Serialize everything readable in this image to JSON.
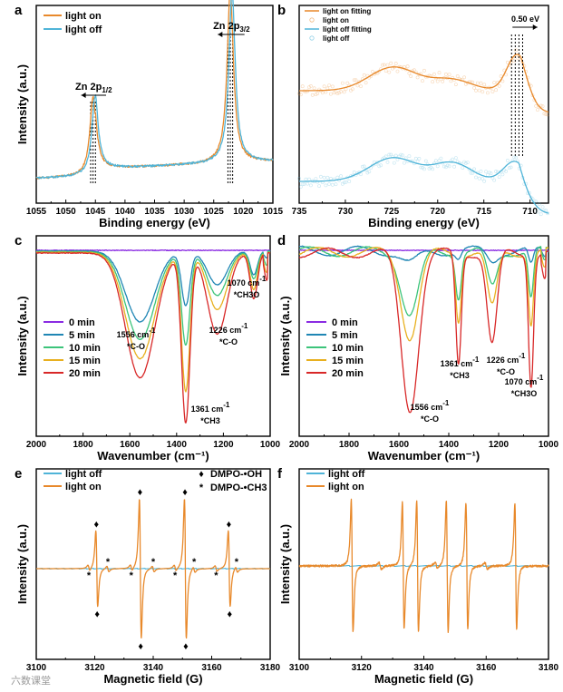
{
  "watermark": "六数课堂",
  "colors": {
    "light_on": "#e8892b",
    "light_off": "#4fb4d8",
    "min0": "#8a2be2",
    "min5": "#1f86b4",
    "min10": "#3cc47a",
    "min15": "#e8b020",
    "min20": "#d82828",
    "dmpo_oh": "#e02020",
    "guide": "#000000"
  },
  "chart_data": [
    {
      "panel": "a",
      "type": "line",
      "xlabel": "Binding energy (eV)",
      "ylabel": "Intensity (a.u.)",
      "xlim": [
        1055,
        1015
      ],
      "x_ticks": [
        "1055",
        "1050",
        "1045",
        "1040",
        "1035",
        "1030",
        "1025",
        "1020",
        "1015"
      ],
      "legend": [
        "light on",
        "light off"
      ],
      "series": [
        {
          "name": "light on",
          "color_key": "light_on",
          "peaks": [
            {
              "center": 1045.4,
              "height": 0.46,
              "width": 0.65
            },
            {
              "center": 1022.2,
              "height": 1.0,
              "width": 0.65
            }
          ],
          "baseline_low": 0.08,
          "baseline_high": 0.14
        },
        {
          "name": "light off",
          "color_key": "light_off",
          "peaks": [
            {
              "center": 1045.1,
              "height": 0.45,
              "width": 0.65
            },
            {
              "center": 1021.9,
              "height": 0.99,
              "width": 0.65
            }
          ],
          "baseline_low": 0.08,
          "baseline_high": 0.14
        }
      ],
      "guides_x": [
        1045.8,
        1045.4,
        1045.0,
        1022.6,
        1022.2,
        1021.8
      ],
      "annotations": [
        {
          "main": "Zn 2p",
          "sub": "1/2",
          "x": 1045.3,
          "arrow_from": 1043.2,
          "arrow_to": 1047.4
        },
        {
          "main": "Zn 2p",
          "sub": "3/2",
          "x": 1022.0,
          "arrow_from": 1019.8,
          "arrow_to": 1024.3
        }
      ]
    },
    {
      "panel": "b",
      "type": "scatter",
      "xlabel": "Binding energy (eV)",
      "xlim": [
        735,
        708
      ],
      "x_ticks": [
        "735",
        "730",
        "725",
        "720",
        "715",
        "710"
      ],
      "legend": [
        "light on fitting",
        "light on",
        "light off fitting",
        "light off"
      ],
      "series": [
        {
          "name": "light on fitting",
          "color_key": "light_on",
          "offset": 0.62,
          "bumps": [
            {
              "center": 724.8,
              "height": 0.13,
              "width": 2.6
            },
            {
              "center": 718.5,
              "height": 0.06,
              "width": 2.2
            },
            {
              "center": 711.4,
              "height": 0.2,
              "width": 1.1
            }
          ],
          "tail": {
            "start": 711.0,
            "drop": 0.13
          }
        },
        {
          "name": "light off fitting",
          "color_key": "light_off",
          "offset": 0.12,
          "bumps": [
            {
              "center": 724.8,
              "height": 0.13,
              "width": 2.6
            },
            {
              "center": 718.4,
              "height": 0.1,
              "width": 2.1
            },
            {
              "center": 711.7,
              "height": 0.11,
              "width": 1.2
            }
          ],
          "tail": {
            "start": 711.2,
            "drop": 0.19
          }
        }
      ],
      "guides_x": [
        712.0,
        711.6,
        711.2,
        710.8
      ],
      "annotation": {
        "label": "0.50 eV",
        "arrow_from": 711.9,
        "arrow_to": 709.2
      }
    },
    {
      "panel": "c",
      "type": "line",
      "xlabel": "Wavenumber (cm⁻¹)",
      "ylabel": "Intensity (a.u.)",
      "xlim": [
        2000,
        1000
      ],
      "x_ticks": [
        "2000",
        "1800",
        "1600",
        "1400",
        "1200",
        "1000"
      ],
      "legend": [
        "0 min",
        "5 min",
        "10 min",
        "15 min",
        "20 min"
      ],
      "series_keys": [
        "min0",
        "min5",
        "min10",
        "min15",
        "min20"
      ],
      "bands": [
        {
          "center": 1556,
          "width": 62,
          "depth": [
            0.0,
            0.42,
            0.52,
            0.63,
            0.74
          ]
        },
        {
          "center": 1361,
          "width": 18,
          "depth": [
            0.0,
            0.32,
            0.55,
            0.82,
            1.0
          ]
        },
        {
          "center": 1226,
          "width": 42,
          "depth": [
            0.0,
            0.2,
            0.26,
            0.34,
            0.48
          ]
        },
        {
          "center": 1070,
          "width": 16,
          "depth": [
            0.0,
            0.14,
            0.16,
            0.22,
            0.27
          ]
        }
      ],
      "annotations": [
        {
          "text": "1556 cm",
          "sup": "-1",
          "label": "*C-O",
          "x": 1600
        },
        {
          "text": "1361 cm",
          "sup": "-1",
          "label": "*CH3",
          "x": 1361
        },
        {
          "text": "1226 cm",
          "sup": "-1",
          "label": "*C-O",
          "x": 1215
        },
        {
          "text": "1070 cm",
          "sup": "-1",
          "label": "*CH3O",
          "x": 1060
        }
      ]
    },
    {
      "panel": "d",
      "type": "line",
      "xlabel": "Wavenumber (cm⁻¹)",
      "xlim": [
        2000,
        1000
      ],
      "x_ticks": [
        "2000",
        "1800",
        "1600",
        "1400",
        "1200",
        "1000"
      ],
      "legend": [
        "0 min",
        "5 min",
        "10 min",
        "15 min",
        "20 min"
      ],
      "series_keys": [
        "min0",
        "min5",
        "min10",
        "min15",
        "min20"
      ],
      "bands": [
        {
          "center": 1556,
          "width": 35,
          "depth": [
            0.0,
            0.08,
            0.4,
            0.53,
            0.98
          ]
        },
        {
          "center": 1361,
          "width": 11,
          "depth": [
            0.0,
            0.05,
            0.28,
            0.42,
            0.7
          ]
        },
        {
          "center": 1226,
          "width": 20,
          "depth": [
            0.0,
            0.06,
            0.22,
            0.35,
            0.58
          ]
        },
        {
          "center": 1070,
          "width": 10,
          "depth": [
            0.0,
            0.1,
            0.3,
            0.45,
            0.82
          ]
        }
      ],
      "annotations": [
        {
          "text": "1556 cm",
          "sup": "-1",
          "label": "*C-O",
          "x": 1540
        },
        {
          "text": "1361 cm",
          "sup": "-1",
          "label": "*CH3",
          "x": 1352
        },
        {
          "text": "1226 cm",
          "sup": "-1",
          "label": "*C-O",
          "x": 1205
        },
        {
          "text": "1070 cm",
          "sup": "-1",
          "label": "*CH3O",
          "x": 1062
        }
      ]
    },
    {
      "panel": "e",
      "type": "line",
      "xlabel": "Magnetic field (G)",
      "ylabel": "Intensity (a.u.)",
      "xlim": [
        3100,
        3180
      ],
      "x_ticks": [
        "3100",
        "3120",
        "3140",
        "3160",
        "3180"
      ],
      "legend": [
        "light off",
        "light on"
      ],
      "marker_legend": [
        {
          "symbol": "♦",
          "label": "DMPO-•OH",
          "color_key": "dmpo_oh"
        },
        {
          "symbol": "*",
          "label": "DMPO-•CH3",
          "color_key": "guide"
        }
      ],
      "oh_lines": [
        {
          "center": 3120.7,
          "amp": 0.26
        },
        {
          "center": 3135.6,
          "amp": 0.48
        },
        {
          "center": 3151.0,
          "amp": 0.48
        },
        {
          "center": 3166.0,
          "amp": 0.26
        }
      ],
      "ch3_lines": [
        3118.0,
        3124.5,
        3132.5,
        3140.0,
        3147.5,
        3154.0,
        3161.5,
        3168.5
      ]
    },
    {
      "panel": "f",
      "type": "line",
      "xlabel": "Magnetic field (G)",
      "xlim": [
        3100,
        3180
      ],
      "x_ticks": [
        "3100",
        "3120",
        "3140",
        "3160",
        "3180"
      ],
      "legend": [
        "light off",
        "light on"
      ],
      "lines": [
        {
          "center": 3117.0,
          "amp": 0.48
        },
        {
          "center": 3133.4,
          "amp": 0.46
        },
        {
          "center": 3138.0,
          "amp": 0.48
        },
        {
          "center": 3147.5,
          "amp": 0.48
        },
        {
          "center": 3153.8,
          "amp": 0.46
        },
        {
          "center": 3169.5,
          "amp": 0.46
        }
      ]
    }
  ]
}
